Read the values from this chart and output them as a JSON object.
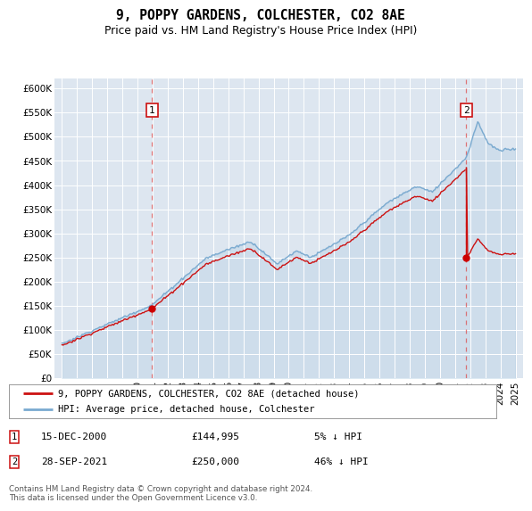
{
  "title": "9, POPPY GARDENS, COLCHESTER, CO2 8AE",
  "subtitle": "Price paid vs. HM Land Registry's House Price Index (HPI)",
  "legend_entry1": "9, POPPY GARDENS, COLCHESTER, CO2 8AE (detached house)",
  "legend_entry2": "HPI: Average price, detached house, Colchester",
  "annotation1_date": "15-DEC-2000",
  "annotation1_price": "£144,995",
  "annotation1_hpi": "5% ↓ HPI",
  "annotation2_date": "28-SEP-2021",
  "annotation2_price": "£250,000",
  "annotation2_hpi": "46% ↓ HPI",
  "footer": "Contains HM Land Registry data © Crown copyright and database right 2024.\nThis data is licensed under the Open Government Licence v3.0.",
  "bg_color": "#dde6f0",
  "line_color_hpi": "#7aaad0",
  "line_color_price": "#cc1111",
  "marker_color": "#cc0000",
  "annot_line_color": "#dd4444",
  "ylim_min": 0,
  "ylim_max": 620000,
  "yticks": [
    0,
    50000,
    100000,
    150000,
    200000,
    250000,
    300000,
    350000,
    400000,
    450000,
    500000,
    550000,
    600000
  ],
  "sale1_year": 2000.958,
  "sale1_price": 144995,
  "sale2_year": 2021.75,
  "sale2_price": 250000
}
